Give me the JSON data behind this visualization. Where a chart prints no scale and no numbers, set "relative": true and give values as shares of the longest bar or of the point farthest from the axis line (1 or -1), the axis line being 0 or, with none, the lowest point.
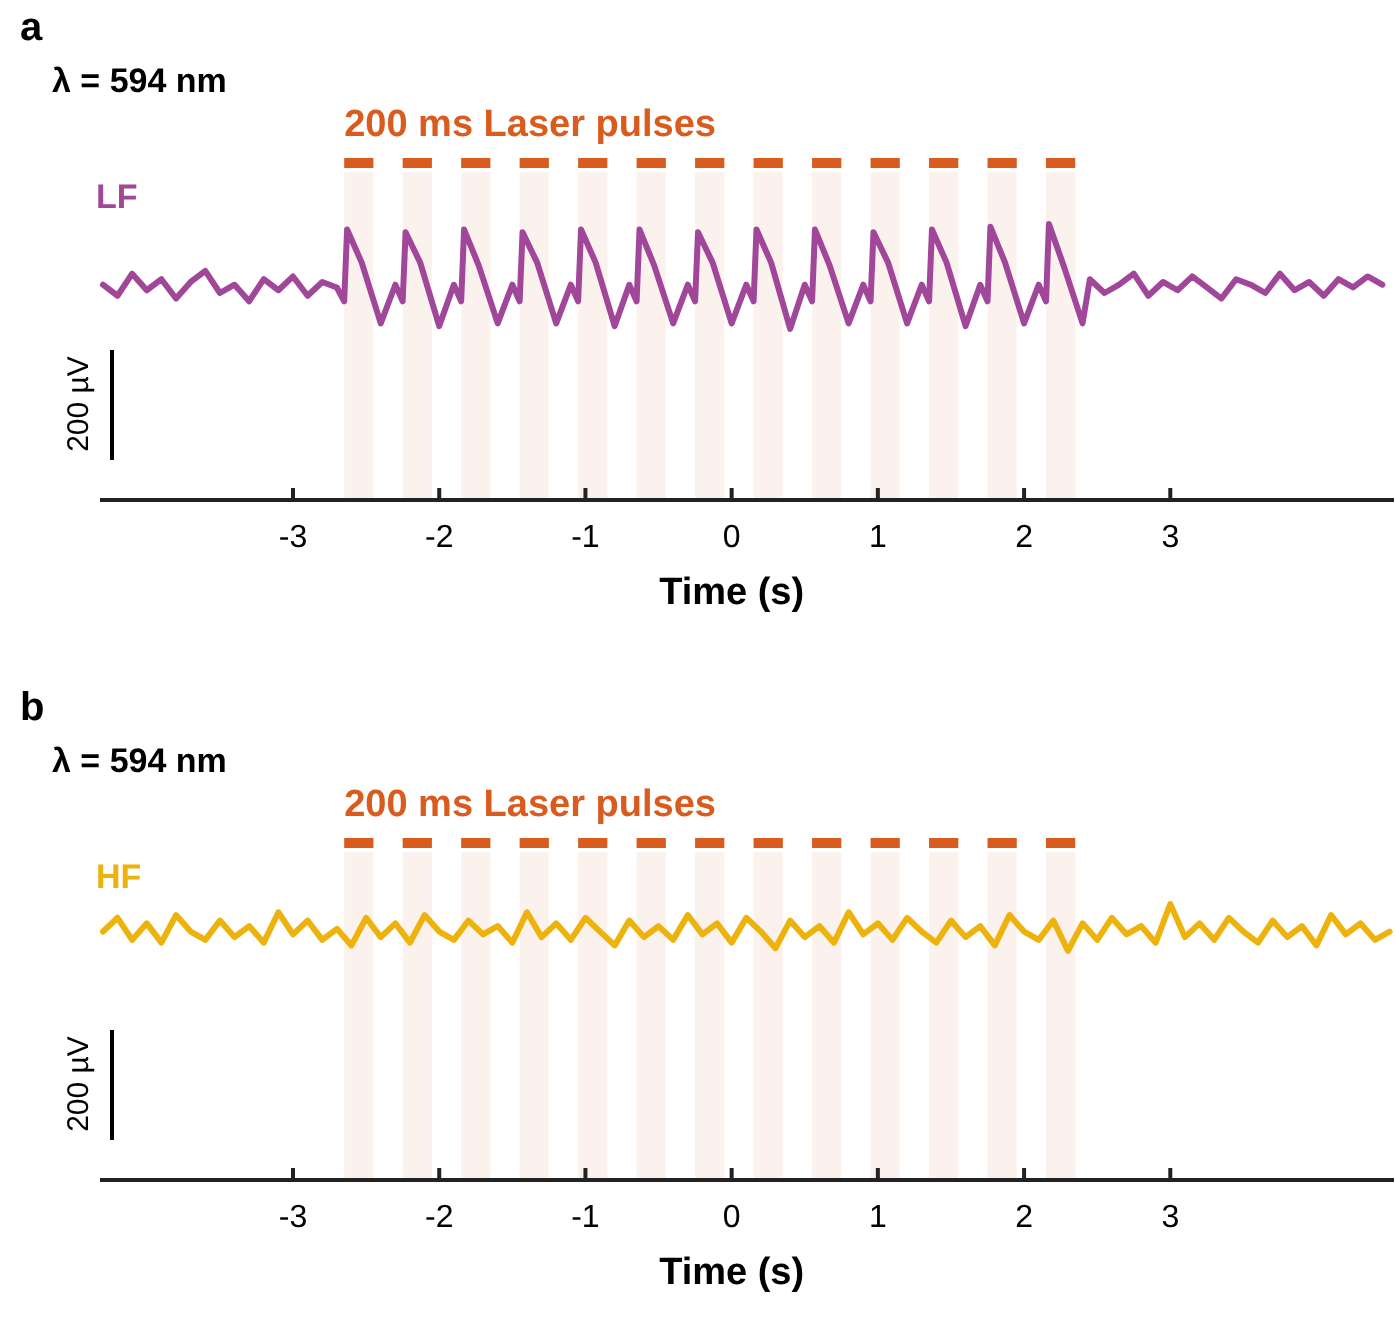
{
  "chart_data": [
    {
      "type": "line",
      "title": "λ = 594 nm",
      "xlabel": "Time (s)",
      "ylabel": "200 µV",
      "relative": true,
      "xlim": [
        -4.32,
        4.53
      ],
      "xticks": [
        -3,
        -2,
        -1,
        0,
        1,
        2,
        3
      ],
      "annotations": [
        "a",
        "200 ms Laser pulses"
      ],
      "bands": [
        {
          "axis": "x",
          "from": -2.65,
          "to": -2.45,
          "color": "#d95b1e"
        },
        {
          "axis": "x",
          "from": -2.25,
          "to": -2.05,
          "color": "#d95b1e"
        },
        {
          "axis": "x",
          "from": -1.85,
          "to": -1.65,
          "color": "#d95b1e"
        },
        {
          "axis": "x",
          "from": -1.45,
          "to": -1.25,
          "color": "#d95b1e"
        },
        {
          "axis": "x",
          "from": -1.05,
          "to": -0.85,
          "color": "#d95b1e"
        },
        {
          "axis": "x",
          "from": -0.65,
          "to": -0.45,
          "color": "#d95b1e"
        },
        {
          "axis": "x",
          "from": -0.25,
          "to": -0.05,
          "color": "#d95b1e"
        },
        {
          "axis": "x",
          "from": 0.15,
          "to": 0.35,
          "color": "#d95b1e"
        },
        {
          "axis": "x",
          "from": 0.55,
          "to": 0.75,
          "color": "#d95b1e"
        },
        {
          "axis": "x",
          "from": 0.95,
          "to": 1.15,
          "color": "#d95b1e"
        },
        {
          "axis": "x",
          "from": 1.35,
          "to": 1.55,
          "color": "#d95b1e"
        },
        {
          "axis": "x",
          "from": 1.75,
          "to": 1.95,
          "color": "#d95b1e"
        },
        {
          "axis": "x",
          "from": 2.15,
          "to": 2.35,
          "color": "#d95b1e"
        }
      ],
      "series": [
        {
          "name": "LF",
          "color": "#a0479a",
          "x": [
            -4.3,
            -4.2,
            -4.1,
            -4.0,
            -3.9,
            -3.8,
            -3.7,
            -3.6,
            -3.5,
            -3.4,
            -3.3,
            -3.2,
            -3.1,
            -3.0,
            -2.9,
            -2.8,
            -2.7,
            -2.65,
            -2.63,
            -2.53,
            -2.4,
            -2.3,
            -2.25,
            -2.23,
            -2.13,
            -2.0,
            -1.9,
            -1.85,
            -1.83,
            -1.73,
            -1.6,
            -1.5,
            -1.45,
            -1.43,
            -1.33,
            -1.2,
            -1.1,
            -1.05,
            -1.03,
            -0.93,
            -0.8,
            -0.7,
            -0.65,
            -0.63,
            -0.53,
            -0.4,
            -0.3,
            -0.25,
            -0.23,
            -0.13,
            0.0,
            0.1,
            0.15,
            0.17,
            0.27,
            0.4,
            0.5,
            0.55,
            0.57,
            0.67,
            0.8,
            0.9,
            0.95,
            0.97,
            1.07,
            1.2,
            1.3,
            1.35,
            1.37,
            1.47,
            1.6,
            1.7,
            1.75,
            1.77,
            1.87,
            2.0,
            2.1,
            2.15,
            2.17,
            2.27,
            2.4,
            2.45,
            2.55,
            2.65,
            2.75,
            2.85,
            2.95,
            3.05,
            3.15,
            3.25,
            3.35,
            3.45,
            3.55,
            3.65,
            3.75,
            3.85,
            3.95,
            4.05,
            4.15,
            4.25,
            4.35,
            4.45
          ],
          "values": [
            0.78,
            0.74,
            0.82,
            0.76,
            0.8,
            0.73,
            0.79,
            0.83,
            0.75,
            0.78,
            0.72,
            0.8,
            0.76,
            0.81,
            0.74,
            0.79,
            0.77,
            0.72,
            0.98,
            0.86,
            0.64,
            0.78,
            0.72,
            0.97,
            0.86,
            0.63,
            0.78,
            0.72,
            0.98,
            0.85,
            0.64,
            0.78,
            0.72,
            0.97,
            0.86,
            0.64,
            0.78,
            0.72,
            0.98,
            0.86,
            0.63,
            0.78,
            0.72,
            0.98,
            0.85,
            0.64,
            0.78,
            0.72,
            0.97,
            0.86,
            0.64,
            0.78,
            0.72,
            0.98,
            0.86,
            0.62,
            0.78,
            0.72,
            0.98,
            0.85,
            0.64,
            0.78,
            0.72,
            0.97,
            0.86,
            0.64,
            0.78,
            0.72,
            0.98,
            0.86,
            0.63,
            0.78,
            0.72,
            0.99,
            0.86,
            0.64,
            0.78,
            0.72,
            1.0,
            0.85,
            0.64,
            0.8,
            0.75,
            0.78,
            0.82,
            0.74,
            0.79,
            0.76,
            0.81,
            0.77,
            0.73,
            0.8,
            0.78,
            0.75,
            0.82,
            0.76,
            0.79,
            0.74,
            0.8,
            0.77,
            0.81,
            0.78
          ]
        }
      ]
    },
    {
      "type": "line",
      "title": "λ = 594 nm",
      "xlabel": "Time (s)",
      "ylabel": "200 µV",
      "relative": true,
      "xlim": [
        -4.32,
        4.53
      ],
      "xticks": [
        -3,
        -2,
        -1,
        0,
        1,
        2,
        3
      ],
      "annotations": [
        "b",
        "200 ms Laser pulses"
      ],
      "bands": [
        {
          "axis": "x",
          "from": -2.65,
          "to": -2.45,
          "color": "#d95b1e"
        },
        {
          "axis": "x",
          "from": -2.25,
          "to": -2.05,
          "color": "#d95b1e"
        },
        {
          "axis": "x",
          "from": -1.85,
          "to": -1.65,
          "color": "#d95b1e"
        },
        {
          "axis": "x",
          "from": -1.45,
          "to": -1.25,
          "color": "#d95b1e"
        },
        {
          "axis": "x",
          "from": -1.05,
          "to": -0.85,
          "color": "#d95b1e"
        },
        {
          "axis": "x",
          "from": -0.65,
          "to": -0.45,
          "color": "#d95b1e"
        },
        {
          "axis": "x",
          "from": -0.25,
          "to": -0.05,
          "color": "#d95b1e"
        },
        {
          "axis": "x",
          "from": 0.15,
          "to": 0.35,
          "color": "#d95b1e"
        },
        {
          "axis": "x",
          "from": 0.55,
          "to": 0.75,
          "color": "#d95b1e"
        },
        {
          "axis": "x",
          "from": 0.95,
          "to": 1.15,
          "color": "#d95b1e"
        },
        {
          "axis": "x",
          "from": 1.35,
          "to": 1.55,
          "color": "#d95b1e"
        },
        {
          "axis": "x",
          "from": 1.75,
          "to": 1.95,
          "color": "#d95b1e"
        },
        {
          "axis": "x",
          "from": 2.15,
          "to": 2.35,
          "color": "#d95b1e"
        }
      ],
      "series": [
        {
          "name": "HF",
          "color": "#edb20c",
          "x": [
            -4.3,
            -4.2,
            -4.1,
            -4.0,
            -3.9,
            -3.8,
            -3.7,
            -3.6,
            -3.5,
            -3.4,
            -3.3,
            -3.2,
            -3.1,
            -3.0,
            -2.9,
            -2.8,
            -2.7,
            -2.6,
            -2.5,
            -2.4,
            -2.3,
            -2.2,
            -2.1,
            -2.0,
            -1.9,
            -1.8,
            -1.7,
            -1.6,
            -1.5,
            -1.4,
            -1.3,
            -1.2,
            -1.1,
            -1.0,
            -0.9,
            -0.8,
            -0.7,
            -0.6,
            -0.5,
            -0.4,
            -0.3,
            -0.2,
            -0.1,
            0.0,
            0.1,
            0.2,
            0.3,
            0.4,
            0.5,
            0.6,
            0.7,
            0.8,
            0.9,
            1.0,
            1.1,
            1.2,
            1.3,
            1.4,
            1.5,
            1.6,
            1.7,
            1.8,
            1.9,
            2.0,
            2.1,
            2.2,
            2.3,
            2.4,
            2.5,
            2.6,
            2.7,
            2.8,
            2.9,
            3.0,
            3.1,
            3.2,
            3.3,
            3.4,
            3.5,
            3.6,
            3.7,
            3.8,
            3.9,
            4.0,
            4.1,
            4.2,
            4.3,
            4.4,
            4.5
          ],
          "values": [
            0.9,
            0.95,
            0.87,
            0.93,
            0.86,
            0.96,
            0.9,
            0.87,
            0.94,
            0.88,
            0.92,
            0.86,
            0.97,
            0.89,
            0.94,
            0.87,
            0.91,
            0.85,
            0.95,
            0.88,
            0.93,
            0.86,
            0.96,
            0.9,
            0.87,
            0.94,
            0.89,
            0.92,
            0.86,
            0.97,
            0.88,
            0.93,
            0.87,
            0.95,
            0.9,
            0.85,
            0.94,
            0.88,
            0.92,
            0.87,
            0.96,
            0.89,
            0.93,
            0.86,
            0.95,
            0.9,
            0.84,
            0.94,
            0.88,
            0.92,
            0.86,
            0.97,
            0.89,
            0.93,
            0.87,
            0.95,
            0.9,
            0.86,
            0.94,
            0.88,
            0.92,
            0.85,
            0.96,
            0.9,
            0.87,
            0.94,
            0.83,
            0.93,
            0.87,
            0.95,
            0.89,
            0.92,
            0.86,
            1.0,
            0.88,
            0.93,
            0.87,
            0.95,
            0.9,
            0.86,
            0.94,
            0.88,
            0.92,
            0.85,
            0.96,
            0.89,
            0.93,
            0.87,
            0.9
          ]
        }
      ]
    }
  ]
}
